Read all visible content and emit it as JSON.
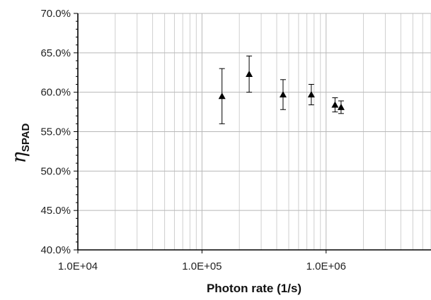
{
  "chart_data": {
    "type": "scatter",
    "title": "",
    "xlabel": "Photon rate (1/s)",
    "ylabel": {
      "main": "η",
      "sub": "SPAD"
    },
    "x_scale": "log",
    "xlim": [
      10000,
      7000000
    ],
    "ylim": [
      0.4,
      0.7
    ],
    "x_ticks": [
      {
        "value": 10000,
        "label": "1.0E+04"
      },
      {
        "value": 100000,
        "label": "1.0E+05"
      },
      {
        "value": 1000000,
        "label": "1.0E+06"
      }
    ],
    "y_ticks": [
      {
        "value": 0.4,
        "label": "40.0%"
      },
      {
        "value": 0.45,
        "label": "45.0%"
      },
      {
        "value": 0.5,
        "label": "50.0%"
      },
      {
        "value": 0.55,
        "label": "55.0%"
      },
      {
        "value": 0.6,
        "label": "60.0%"
      },
      {
        "value": 0.65,
        "label": "65.0%"
      },
      {
        "value": 0.7,
        "label": "70.0%"
      }
    ],
    "grid": {
      "major": true,
      "minor_x": true,
      "minor_y": false
    },
    "marker": "triangle",
    "marker_color": "#000000",
    "points": [
      {
        "x": 145000,
        "y": 0.595,
        "err": 0.035
      },
      {
        "x": 240000,
        "y": 0.623,
        "err": 0.023
      },
      {
        "x": 450000,
        "y": 0.597,
        "err": 0.019
      },
      {
        "x": 760000,
        "y": 0.597,
        "err": 0.013
      },
      {
        "x": 1180000,
        "y": 0.584,
        "err": 0.009
      },
      {
        "x": 1320000,
        "y": 0.581,
        "err": 0.008
      }
    ]
  }
}
